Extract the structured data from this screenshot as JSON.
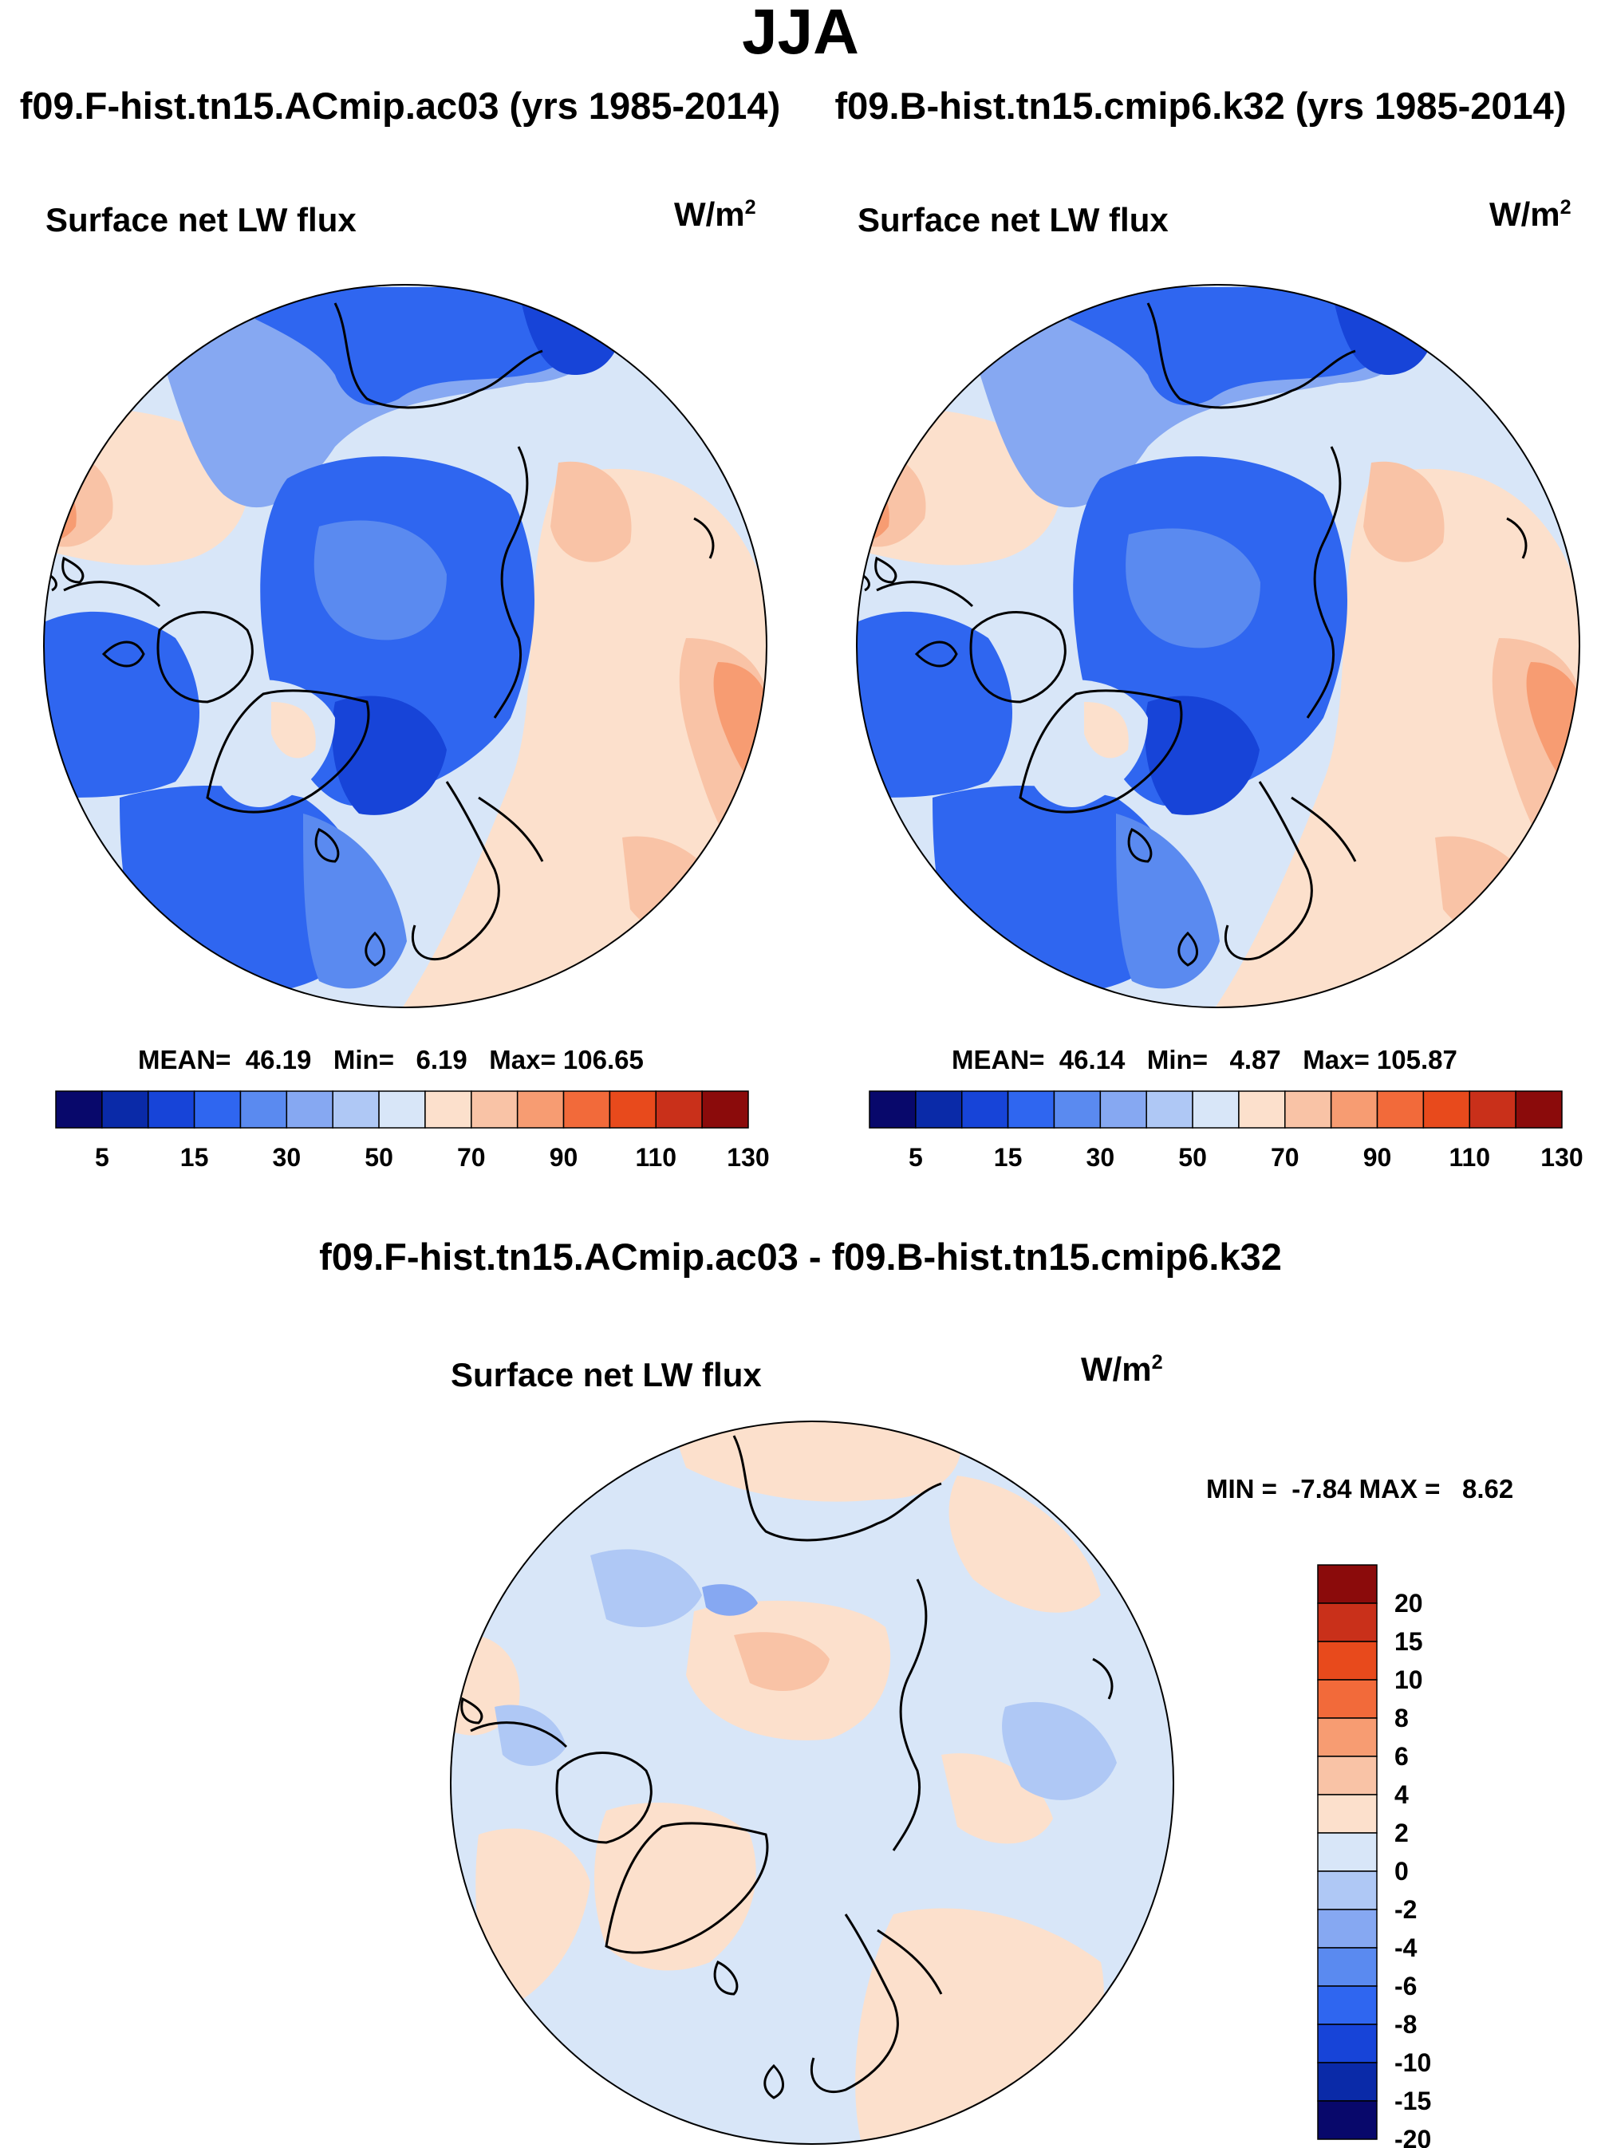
{
  "figure": {
    "season": "JJA",
    "left_case": "f09.F-hist.tn15.ACmip.ac03 (yrs 1985-2014)",
    "right_case": "f09.B-hist.tn15.cmip6.k32 (yrs 1985-2014)",
    "difference_title": "f09.F-hist.tn15.ACmip.ac03 - f09.B-hist.tn15.cmip6.k32",
    "variable": "Surface net LW flux",
    "units_base": "W/m",
    "units_exp": "2"
  },
  "colors": {
    "abs_scale": [
      "#08086b",
      "#0a2aa8",
      "#1744d8",
      "#2f66f0",
      "#5a8af0",
      "#86a8f2",
      "#afc8f5",
      "#d8e6f8",
      "#fce0cc",
      "#f9c3a6",
      "#f79c72",
      "#f26a3a",
      "#e84a1c",
      "#c9301a",
      "#8b0b0b"
    ],
    "diff_scale": [
      "#08086b",
      "#0a2aa8",
      "#1744d8",
      "#2f66f0",
      "#5a8af0",
      "#86a8f2",
      "#afc8f5",
      "#d8e6f8",
      "#fce0cc",
      "#f9c3a6",
      "#f79c72",
      "#f26a3a",
      "#e84a1c",
      "#c9301a",
      "#8b0b0b"
    ],
    "land_outline": "#000000"
  },
  "chart_data": [
    {
      "type": "heatmap",
      "projection": "north polar stereographic",
      "title": "Surface net LW flux",
      "units": "W/m2",
      "case": "f09.F-hist.tn15.ACmip.ac03 (yrs 1985-2014)",
      "stats": {
        "mean_label": "MEAN=",
        "mean": "46.19",
        "min_label": "Min=",
        "min": "6.19",
        "max_label": "Max=",
        "max": "106.65"
      },
      "colorbar": {
        "orientation": "horizontal",
        "levels": [
          5,
          10,
          15,
          20,
          30,
          40,
          50,
          60,
          70,
          80,
          90,
          100,
          110,
          120,
          130
        ],
        "tick_labels": [
          "5",
          "15",
          "30",
          "50",
          "70",
          "90",
          "110",
          "130"
        ]
      }
    },
    {
      "type": "heatmap",
      "projection": "north polar stereographic",
      "title": "Surface net LW flux",
      "units": "W/m2",
      "case": "f09.B-hist.tn15.cmip6.k32 (yrs 1985-2014)",
      "stats": {
        "mean_label": "MEAN=",
        "mean": "46.14",
        "min_label": "Min=",
        "min": "4.87",
        "max_label": "Max=",
        "max": "105.87"
      },
      "colorbar": {
        "orientation": "horizontal",
        "levels": [
          5,
          10,
          15,
          20,
          30,
          40,
          50,
          60,
          70,
          80,
          90,
          100,
          110,
          120,
          130
        ],
        "tick_labels": [
          "5",
          "15",
          "30",
          "50",
          "70",
          "90",
          "110",
          "130"
        ]
      }
    },
    {
      "type": "heatmap",
      "projection": "north polar stereographic",
      "title": "Surface net LW flux",
      "units": "W/m2",
      "case": "f09.F-hist.tn15.ACmip.ac03 - f09.B-hist.tn15.cmip6.k32",
      "stats": {
        "min_label": "MIN =",
        "min": "-7.84",
        "max_label": "MAX =",
        "max": "8.62"
      },
      "colorbar": {
        "orientation": "vertical",
        "levels": [
          -20,
          -15,
          -10,
          -8,
          -6,
          -4,
          -2,
          0,
          2,
          4,
          6,
          8,
          10,
          15,
          20
        ],
        "tick_labels": [
          "20",
          "15",
          "10",
          "8",
          "6",
          "4",
          "2",
          "0",
          "-2",
          "-4",
          "-6",
          "-8",
          "-10",
          "-15",
          "-20"
        ]
      }
    }
  ]
}
